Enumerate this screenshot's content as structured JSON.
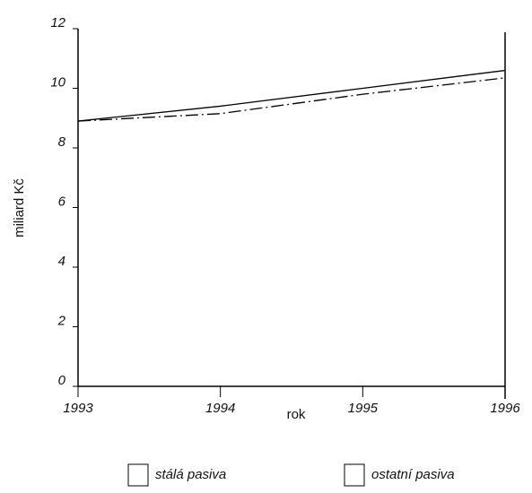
{
  "chart_data": {
    "type": "line",
    "x_label": "rok",
    "y_label": "miliard Kč",
    "x": [
      1993,
      1994,
      1995,
      1996
    ],
    "series": [
      {
        "name": "stálá pasiva",
        "color": "#000000",
        "line_style": "solid",
        "values": [
          8.9,
          9.4,
          10.0,
          10.6
        ]
      },
      {
        "name": "ostatní pasiva",
        "color": "#000000",
        "line_style": "dashdot",
        "values": [
          8.9,
          9.15,
          9.8,
          10.35
        ]
      }
    ],
    "xlim": [
      1993,
      1996
    ],
    "xticks": [
      1993,
      1994,
      1995,
      1996
    ],
    "ylim": [
      0,
      12
    ],
    "yticks": [
      0,
      2,
      4,
      6,
      8,
      10,
      12
    ],
    "grid": false,
    "legend": "bottom"
  }
}
